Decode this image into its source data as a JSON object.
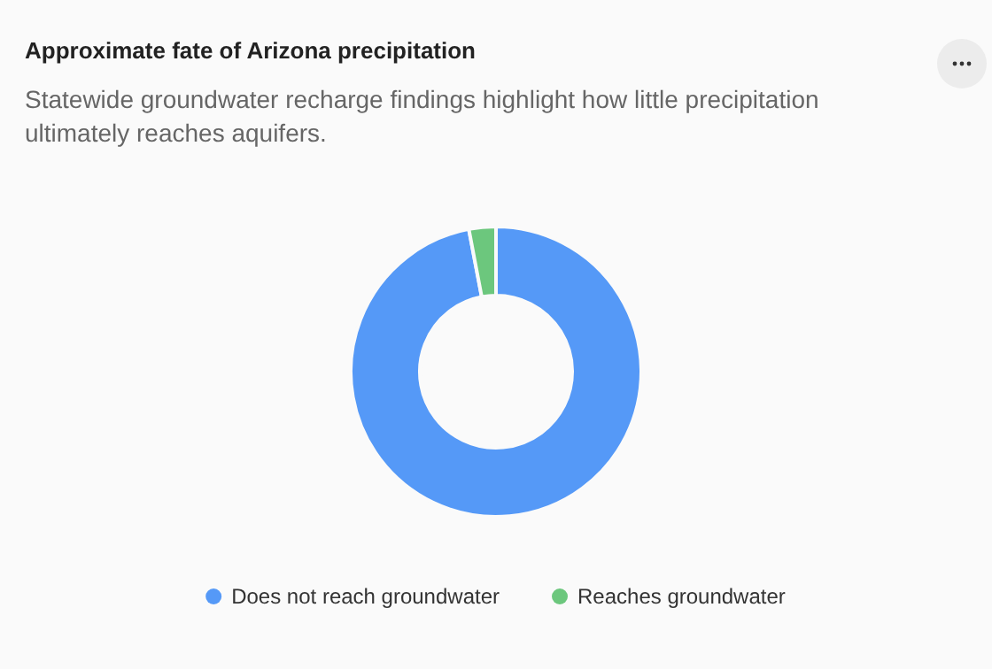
{
  "chart_data": {
    "type": "donut",
    "title": "Approximate fate of Arizona precipitation",
    "subtitle": "Statewide groundwater recharge findings highlight how little precipitation ultimately reaches aquifers.",
    "categories": [
      "Does not reach groundwater",
      "Reaches groundwater"
    ],
    "values": [
      97,
      3
    ],
    "colors": [
      "#5599f7",
      "#6cc77d"
    ],
    "legend": "bottom"
  }
}
